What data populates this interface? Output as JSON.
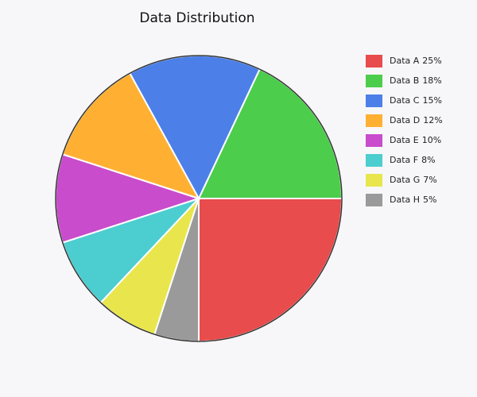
{
  "chart_data": {
    "type": "pie",
    "title": "Data Distribution",
    "categories": [
      "Data A",
      "Data B",
      "Data C",
      "Data D",
      "Data E",
      "Data F",
      "Data G",
      "Data H"
    ],
    "values": [
      25,
      18,
      15,
      12,
      10,
      8,
      7,
      5
    ],
    "value_labels": [
      "25%",
      "18%",
      "15%",
      "12%",
      "10%",
      "8%",
      "7%",
      "5%"
    ],
    "colors": [
      "#e84c4c",
      "#4ccd4c",
      "#4c80e8",
      "#ffb033",
      "#c94ccc",
      "#4ccdd0",
      "#e8e64c",
      "#9a9a9a"
    ],
    "legend": "right"
  }
}
